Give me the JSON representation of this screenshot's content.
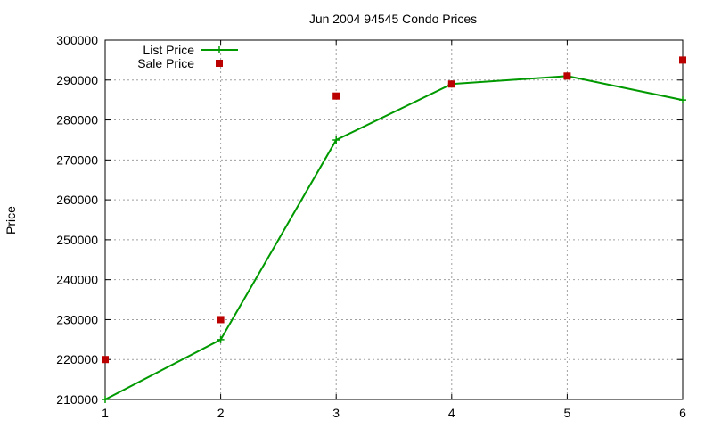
{
  "chart_data": {
    "type": "line",
    "title": "Jun 2004 94545 Condo Prices",
    "xlabel": "",
    "ylabel": "Price",
    "xlim": [
      1,
      6
    ],
    "ylim": [
      210000,
      300000
    ],
    "xticks": [
      "1",
      "2",
      "3",
      "4",
      "5",
      "6"
    ],
    "yticks": [
      "210000",
      "220000",
      "230000",
      "240000",
      "250000",
      "260000",
      "270000",
      "280000",
      "290000",
      "300000"
    ],
    "grid": true,
    "legend_position": "top-left",
    "x": [
      1,
      2,
      3,
      4,
      5,
      6
    ],
    "series": [
      {
        "name": "List Price",
        "style": "line-with-plus-markers",
        "color": "#009900",
        "values": [
          210000,
          225000,
          275000,
          289000,
          291000,
          285000
        ]
      },
      {
        "name": "Sale Price",
        "style": "square-markers",
        "color": "#bb0000",
        "values": [
          220000,
          230000,
          286000,
          289000,
          291000,
          295000
        ]
      }
    ]
  }
}
